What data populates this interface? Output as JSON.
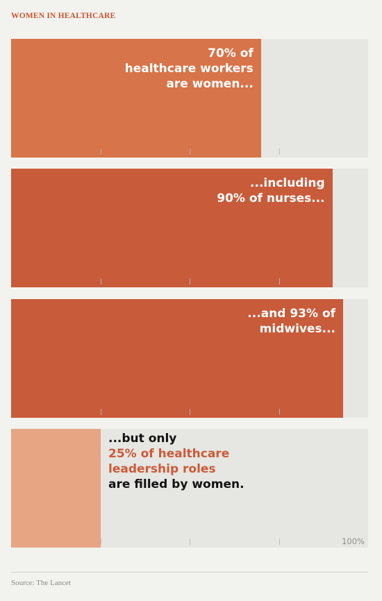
{
  "title": "WOMEN IN HEALTHCARE",
  "colors": {
    "title": "#c8542f",
    "bar_1": "#d87449",
    "bar_2": "#c85b3a",
    "bar_3": "#c85b3a",
    "bar_4": "#e7a583",
    "track": "#e6e6e2",
    "background": "#f2f2ee",
    "highlight_text": "#cc5a38"
  },
  "panels": [
    {
      "label": "70% of\nhealthcare workers\nare women..."
    },
    {
      "label": "...including\n90% of nurses..."
    },
    {
      "label": "...and 93% of\nmidwives..."
    },
    {
      "label_before": "...but only",
      "label_highlight": "25% of healthcare\nleadership roles",
      "label_after": "are filled by women."
    }
  ],
  "axis_end_label": "100%",
  "source": "Source: The Lancet",
  "chart_data": {
    "type": "bar",
    "title": "WOMEN IN HEALTHCARE",
    "categories": [
      "healthcare workers",
      "nurses",
      "midwives",
      "healthcare leadership roles"
    ],
    "values": [
      70,
      90,
      93,
      25
    ],
    "unit": "%",
    "xlim": [
      0,
      100
    ],
    "ticks": [
      25,
      50,
      75
    ],
    "orientation": "horizontal",
    "grid": false,
    "legend": "none"
  }
}
